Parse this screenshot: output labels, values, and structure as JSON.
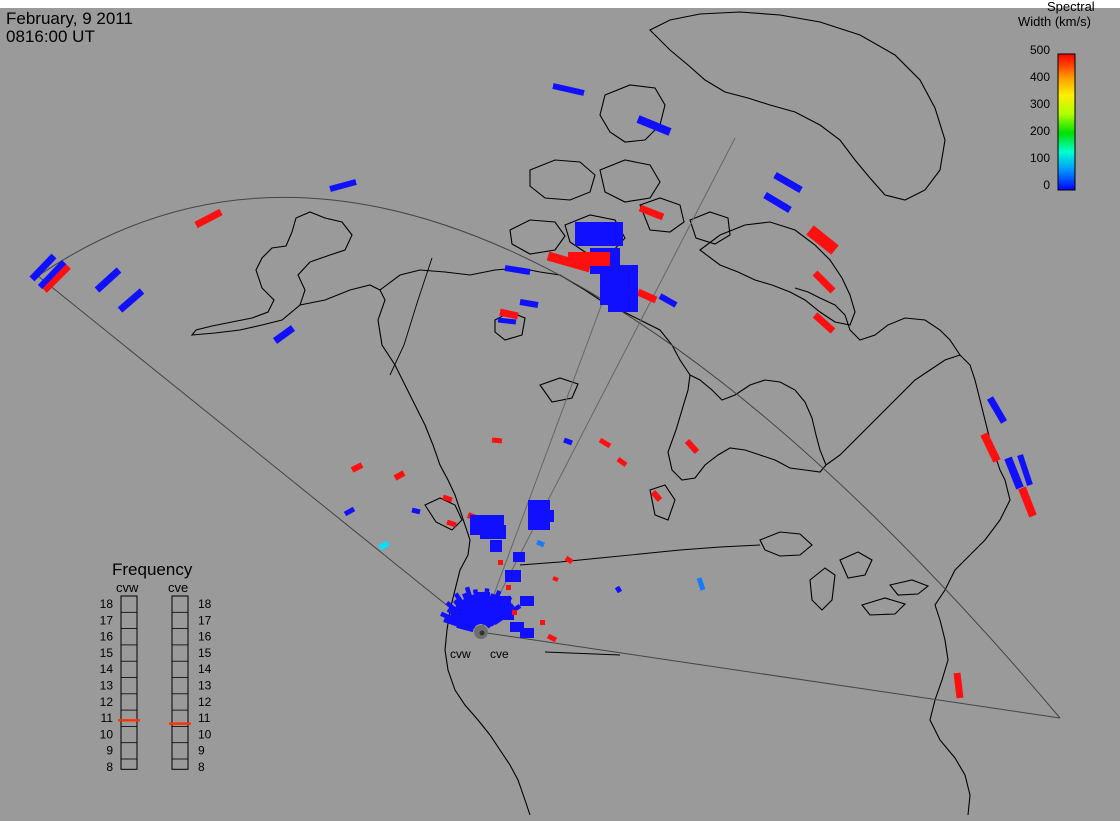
{
  "header": {
    "date": "February, 9 2011",
    "time": "0816:00 UT"
  },
  "map": {
    "radars": [
      {
        "id": "cvw",
        "label": "cvw"
      },
      {
        "id": "cve",
        "label": "cve"
      }
    ]
  },
  "colorbar": {
    "title_line1": "Spectral",
    "title_line2": "Width (km/s)",
    "ticks": [
      "500",
      "400",
      "300",
      "200",
      "100",
      "0"
    ],
    "range": [
      0,
      500
    ],
    "colors": [
      "#0000ff",
      "#00a0ff",
      "#00ffd0",
      "#00ff00",
      "#c0ff00",
      "#ffff00",
      "#ffb000",
      "#ff5000",
      "#ff0000"
    ]
  },
  "frequency_panel": {
    "title": "Frequency",
    "columns": [
      {
        "label": "cvw",
        "value_mhz": 10.8
      },
      {
        "label": "cve",
        "value_mhz": 10.6
      }
    ],
    "scale": [
      "18",
      "17",
      "16",
      "15",
      "14",
      "13",
      "12",
      "11",
      "10",
      "9",
      "8"
    ],
    "indicator_color": "#ff3300"
  }
}
